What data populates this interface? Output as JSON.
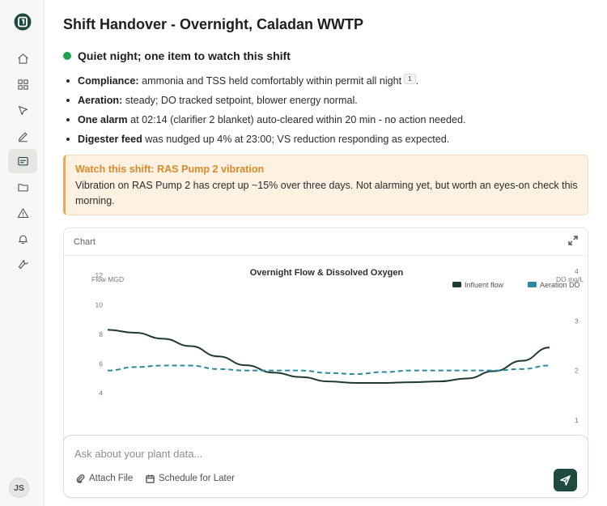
{
  "sidebar": {
    "nav": [
      "home-icon",
      "dashboard-icon",
      "pointer-icon",
      "pencil-icon",
      "chat-icon",
      "folder-icon",
      "alert-icon",
      "bell-icon",
      "wrench-icon"
    ],
    "active_index": 4,
    "avatar_initials": "JS"
  },
  "page": {
    "title": "Shift Handover - Overnight, Caladan WWTP",
    "status": "Quiet night; one item to watch this shift",
    "status_color": "#22a24c"
  },
  "bullets": [
    {
      "label": "Compliance:",
      "text": " ammonia and TSS held comfortably within permit all night",
      "cite": "1",
      "after": "."
    },
    {
      "label": "Aeration:",
      "text": " steady; DO tracked setpoint, blower energy normal."
    },
    {
      "label": "One alarm",
      "text": " at 02:14 (clarifier 2 blanket) auto-cleared within 20 min - no action needed."
    },
    {
      "label": "Digester feed",
      "text": " was nudged up 4% at 23:00; VS reduction responding as expected."
    }
  ],
  "callout": {
    "title": "Watch this shift: RAS Pump 2 vibration",
    "body": "Vibration on RAS Pump 2 has crept up ~15% over three days. Not alarming yet, but worth an eyes-on check this morning.",
    "accent": "#e9a957"
  },
  "chart_card": {
    "label": "Chart"
  },
  "chart_data": {
    "type": "line",
    "title": "Overnight Flow & Dissolved Oxygen",
    "y_left_label": "Flow MGD",
    "y_right_label": "DO mg/L",
    "y_left_ticks": [
      "12",
      "10",
      "8",
      "6",
      "4"
    ],
    "y_right_ticks": [
      "4",
      "3",
      "2",
      "1"
    ],
    "y_left_range": [
      1.9,
      12
    ],
    "y_right_range": [
      1,
      4
    ],
    "legend_position": "top-right",
    "series": [
      {
        "name": "Influent flow",
        "axis": "left",
        "color": "#1d3b33",
        "dash": false,
        "values": [
          8.3,
          8.1,
          7.7,
          7.2,
          6.5,
          5.9,
          5.4,
          5.1,
          4.8,
          4.7,
          4.7,
          4.75,
          4.8,
          5.0,
          5.5,
          6.2,
          7.1
        ]
      },
      {
        "name": "Aeration DO",
        "axis": "right",
        "color": "#2b8a9e",
        "dash": true,
        "values": [
          2.0,
          2.07,
          2.1,
          2.1,
          2.03,
          2.0,
          2.0,
          2.0,
          1.95,
          1.93,
          1.97,
          2.0,
          2.0,
          2.0,
          2.0,
          2.03,
          2.1
        ]
      }
    ]
  },
  "composer": {
    "placeholder": "Ask about your plant data...",
    "attach_label": "Attach File",
    "schedule_label": "Schedule for Later"
  }
}
